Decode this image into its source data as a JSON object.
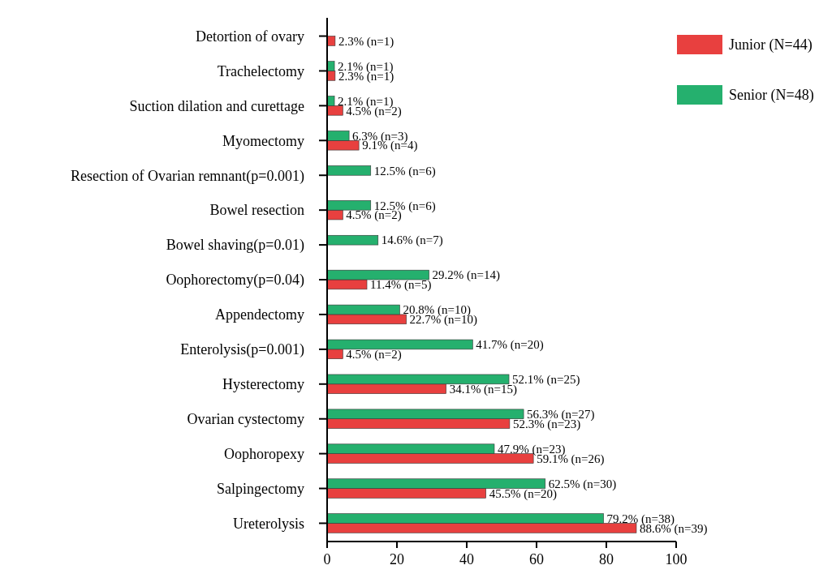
{
  "chart_data": {
    "type": "bar",
    "orientation": "horizontal",
    "categories": [
      "Detortion of ovary",
      "Trachelectomy",
      "Suction dilation and curettage",
      "Myomectomy",
      "Resection of Ovarian remnant(p=0.001)",
      "Bowel resection",
      "Bowel shaving(p=0.01)",
      "Oophorectomy(p=0.04)",
      "Appendectomy",
      "Enterolysis(p=0.001)",
      "Hysterectomy",
      "Ovarian cystectomy",
      "Oophoropexy",
      "Salpingectomy",
      "Ureterolysis"
    ],
    "series": [
      {
        "name": "Junior (N=44)",
        "color": "#e8403f",
        "values": [
          2.3,
          2.3,
          4.5,
          9.1,
          null,
          4.5,
          null,
          11.4,
          22.7,
          4.5,
          34.1,
          52.3,
          59.1,
          45.5,
          88.6
        ],
        "value_labels": [
          "2.3% (n=1)",
          "2.3% (n=1)",
          "4.5% (n=2)",
          "9.1% (n=4)",
          null,
          "4.5% (n=2)",
          null,
          "11.4% (n=5)",
          "22.7% (n=10)",
          "4.5% (n=2)",
          "34.1% (n=15)",
          "52.3% (n=23)",
          "59.1% (n=26)",
          "45.5% (n=20)",
          "88.6% (n=39)"
        ]
      },
      {
        "name": "Senior (N=48)",
        "color": "#25b06e",
        "values": [
          null,
          2.1,
          2.1,
          6.3,
          12.5,
          12.5,
          14.6,
          29.2,
          20.8,
          41.7,
          52.1,
          56.3,
          47.9,
          62.5,
          79.2
        ],
        "value_labels": [
          null,
          "2.1% (n=1)",
          "2.1% (n=1)",
          "6.3% (n=3)",
          "12.5% (n=6)",
          "12.5% (n=6)",
          "14.6% (n=7)",
          "29.2% (n=14)",
          "20.8% (n=10)",
          "41.7% (n=20)",
          "52.1% (n=25)",
          "56.3% (n=27)",
          "47.9% (n=23)",
          "62.5% (n=30)",
          "79.2% (n=38)"
        ]
      }
    ],
    "xlim": [
      0,
      100
    ],
    "xticks": [
      0,
      20,
      40,
      60,
      80,
      100
    ],
    "grid": false,
    "legend": "top right"
  }
}
